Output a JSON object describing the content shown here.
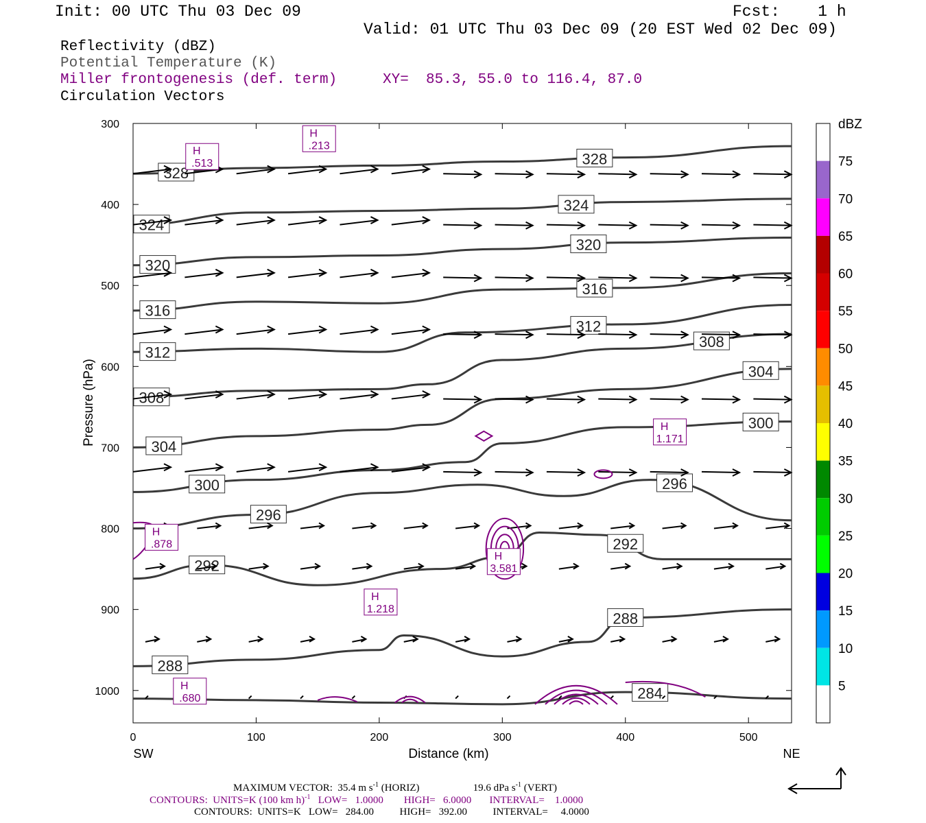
{
  "header": {
    "init": "Init: 00 UTC Thu 03 Dec 09",
    "fcst": "Fcst:    1 h",
    "valid": "Valid: 01 UTC Thu 03 Dec 09 (20 EST Wed 02 Dec 09)"
  },
  "fields": {
    "reflectivity": "Reflectivity (dBZ)",
    "theta": "Potential Temperature (K)",
    "frontogenesis": "Miller frontogenesis (def. term)",
    "xy": "XY=  85.3, 55.0 to 116.4, 87.0",
    "vectors": "Circulation Vectors"
  },
  "colors": {
    "theta": "#3a3a3a",
    "frontogenesis": "#800080",
    "vectors": "#000000"
  },
  "chart_data": {
    "type": "cross-section",
    "xlabel": "Distance (km)",
    "ylabel": "Pressure (hPa)",
    "xlim": [
      0,
      535
    ],
    "ylim": [
      1040,
      300
    ],
    "xticks": [
      0,
      100,
      200,
      300,
      400,
      500
    ],
    "yticks": [
      300,
      400,
      500,
      600,
      700,
      800,
      900,
      1000
    ],
    "x_end_labels": {
      "left": "SW",
      "right": "NE"
    },
    "theta_contours": [
      {
        "level": 328,
        "label": "328",
        "points": [
          [
            0,
            362
          ],
          [
            100,
            355
          ],
          [
            200,
            352
          ],
          [
            300,
            347
          ],
          [
            400,
            342
          ],
          [
            535,
            328
          ]
        ]
      },
      {
        "level": 324,
        "label": "324",
        "points": [
          [
            0,
            425
          ],
          [
            100,
            410
          ],
          [
            200,
            408
          ],
          [
            300,
            405
          ],
          [
            400,
            397
          ],
          [
            535,
            393
          ]
        ]
      },
      {
        "level": 320,
        "label": "320",
        "points": [
          [
            0,
            475
          ],
          [
            100,
            465
          ],
          [
            200,
            463
          ],
          [
            300,
            455
          ],
          [
            400,
            447
          ],
          [
            535,
            441
          ]
        ]
      },
      {
        "level": 316,
        "label": "316",
        "points": [
          [
            0,
            531
          ],
          [
            100,
            520
          ],
          [
            200,
            522
          ],
          [
            300,
            505
          ],
          [
            400,
            503
          ],
          [
            535,
            485
          ]
        ]
      },
      {
        "level": 312,
        "label": "312",
        "points": [
          [
            0,
            582
          ],
          [
            100,
            578
          ],
          [
            200,
            582
          ],
          [
            270,
            558
          ],
          [
            400,
            548
          ],
          [
            535,
            524
          ]
        ]
      },
      {
        "level": 308,
        "label": "308",
        "points": [
          [
            0,
            638
          ],
          [
            100,
            630
          ],
          [
            200,
            628
          ],
          [
            240,
            622
          ],
          [
            300,
            592
          ],
          [
            400,
            578
          ],
          [
            535,
            560
          ]
        ]
      },
      {
        "level": 304,
        "label": "304",
        "points": [
          [
            0,
            700
          ],
          [
            100,
            686
          ],
          [
            200,
            678
          ],
          [
            240,
            672
          ],
          [
            300,
            640
          ],
          [
            400,
            628
          ],
          [
            535,
            603
          ]
        ]
      },
      {
        "level": 300,
        "label": "300",
        "points": [
          [
            0,
            755
          ],
          [
            100,
            740
          ],
          [
            200,
            728
          ],
          [
            270,
            718
          ],
          [
            300,
            695
          ],
          [
            400,
            675
          ],
          [
            535,
            668
          ]
        ]
      },
      {
        "level": 296,
        "label": "296",
        "points": [
          [
            0,
            800
          ],
          [
            100,
            783
          ],
          [
            200,
            756
          ],
          [
            280,
            746
          ],
          [
            350,
            760
          ],
          [
            420,
            740
          ],
          [
            535,
            790
          ]
        ]
      },
      {
        "level": 292,
        "label": "292",
        "points": [
          [
            0,
            862
          ],
          [
            60,
            845
          ],
          [
            150,
            870
          ],
          [
            250,
            850
          ],
          [
            300,
            835
          ],
          [
            330,
            805
          ],
          [
            380,
            808
          ],
          [
            430,
            838
          ],
          [
            535,
            838
          ]
        ]
      },
      {
        "level": 288,
        "label": "288",
        "points": [
          [
            0,
            970
          ],
          [
            100,
            962
          ],
          [
            200,
            950
          ],
          [
            220,
            932
          ],
          [
            300,
            958
          ],
          [
            370,
            940
          ],
          [
            400,
            910
          ],
          [
            535,
            900
          ]
        ]
      },
      {
        "level": 284,
        "label": "284",
        "points": [
          [
            0,
            1010
          ],
          [
            100,
            1012
          ],
          [
            200,
            1015
          ],
          [
            300,
            1017
          ],
          [
            400,
            1002
          ],
          [
            535,
            1010
          ]
        ]
      }
    ],
    "frontogenesis_maxima": [
      {
        "label": "H",
        "value": ".513",
        "x": 45,
        "p": 340
      },
      {
        "label": "H",
        "value": ".213",
        "x": 140,
        "p": 318
      },
      {
        "label": "H",
        "value": "1.171",
        "x": 425,
        "p": 680
      },
      {
        "label": "H",
        "value": ".878",
        "x": 12,
        "p": 810
      },
      {
        "label": "H",
        "value": "3.581",
        "x": 290,
        "p": 840
      },
      {
        "label": "H",
        "value": "1.218",
        "x": 190,
        "p": 890
      },
      {
        "label": "H",
        "value": ".680",
        "x": 35,
        "p": 1000
      }
    ],
    "frontogenesis_units": "K (100 km h)^-1",
    "reflectivity_colorbar": {
      "unit": "dBZ",
      "levels": [
        5,
        10,
        15,
        20,
        25,
        30,
        35,
        40,
        45,
        50,
        55,
        60,
        65,
        70,
        75
      ],
      "colors": [
        "#ffffff",
        "#00e5e5",
        "#0099ff",
        "#0000e0",
        "#00ff00",
        "#00cc00",
        "#008800",
        "#ffff00",
        "#e5bf00",
        "#ff8c00",
        "#ff0000",
        "#d40000",
        "#b30000",
        "#ff00ff",
        "#9966cc",
        "#ffffff"
      ]
    }
  },
  "footer": {
    "max_vector": "MAXIMUM VECTOR:  35.4 m s",
    "max_vector_unit": "-1",
    "horiz": "(HORIZ)",
    "vert_val": "19.6 dPa s",
    "vert_unit": "-1",
    "vert": "(VERT)",
    "purple_contours": "CONTOURS:  UNITS=K (100 km h)",
    "purple_exp": "-1",
    "purple_rest": "   LOW=   1.0000        HIGH=   6.0000       INTERVAL=    1.0000",
    "black_contours": "CONTOURS:  UNITS=K   LOW=   284.00          HIGH=   392.00          INTERVAL=     4.0000"
  }
}
